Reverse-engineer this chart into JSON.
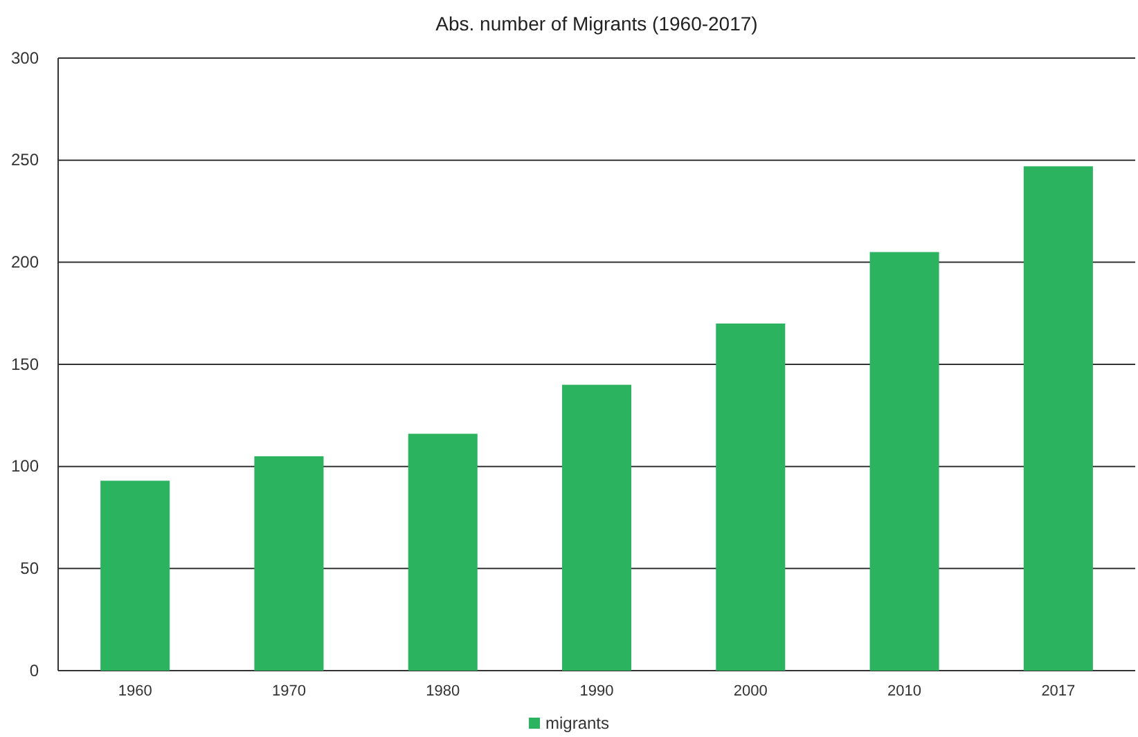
{
  "chart_data": {
    "type": "bar",
    "title": "Abs. number of Migrants (1960-2017)",
    "categories": [
      "1960",
      "1970",
      "1980",
      "1990",
      "2000",
      "2010",
      "2017"
    ],
    "series": [
      {
        "name": "migrants",
        "color": "#2bb35f",
        "values": [
          93,
          105,
          116,
          140,
          170,
          205,
          247
        ]
      }
    ],
    "ylim": [
      0,
      300
    ],
    "yticks": [
      0,
      50,
      100,
      150,
      200,
      250,
      300
    ],
    "grid": "y",
    "legend": "bottom"
  }
}
